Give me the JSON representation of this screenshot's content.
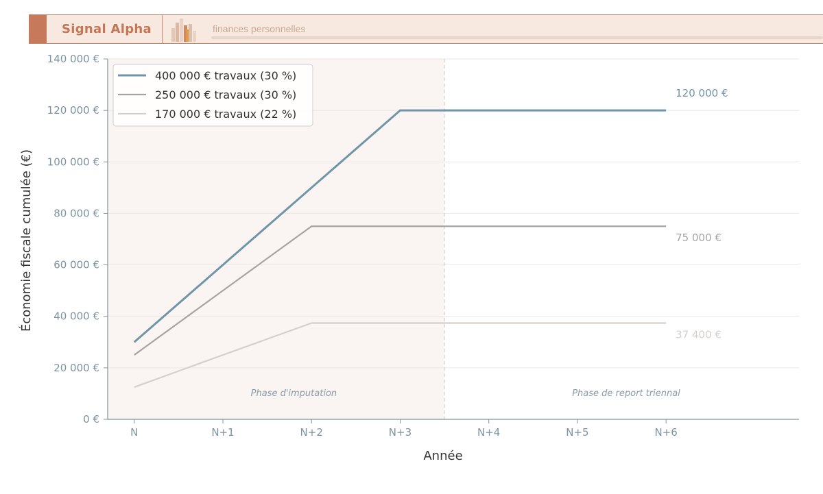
{
  "brand": {
    "name": "Signal Alpha",
    "tagline": "finances personnelles"
  },
  "chart_data": {
    "type": "line",
    "categories": [
      "N",
      "N+1",
      "N+2",
      "N+3",
      "N+4",
      "N+5",
      "N+6"
    ],
    "xlabel": "Année",
    "ylabel": "Économie fiscale cumulée (€)",
    "ylim": [
      0,
      140000
    ],
    "yticks": [
      0,
      20000,
      40000,
      60000,
      80000,
      100000,
      120000,
      140000
    ],
    "ytick_labels": [
      "0 €",
      "20 000 €",
      "40 000 €",
      "60 000 €",
      "80 000 €",
      "100 000 €",
      "120 000 €",
      "140 000 €"
    ],
    "grid": true,
    "legend_position": "top-left",
    "series": [
      {
        "name": "400 000 € travaux (30 %)",
        "values": [
          30000,
          60000,
          90000,
          120000,
          120000,
          120000,
          120000
        ],
        "color": "#6f95a6",
        "end_label": "120 000 €"
      },
      {
        "name": "250 000 € travaux (30 %)",
        "values": [
          25000,
          50000,
          75000,
          75000,
          75000,
          75000,
          75000
        ],
        "color": "#a6a4a2",
        "end_label": "75 000 €"
      },
      {
        "name": "170 000 € travaux (22 %)",
        "values": [
          12500,
          25000,
          37400,
          37400,
          37400,
          37400,
          37400
        ],
        "color": "#d3cfcc",
        "end_label": "37 400 €"
      }
    ],
    "phases": [
      {
        "label": "Phase d'imputation",
        "x_from": -0.3,
        "x_to": 3.5,
        "shaded": true,
        "shade_color": "#faf5f2"
      },
      {
        "label": "Phase de report triennal",
        "x_from": 3.5,
        "x_to": 7.5,
        "shaded": false
      }
    ],
    "phase_divider_x": 3.5
  }
}
